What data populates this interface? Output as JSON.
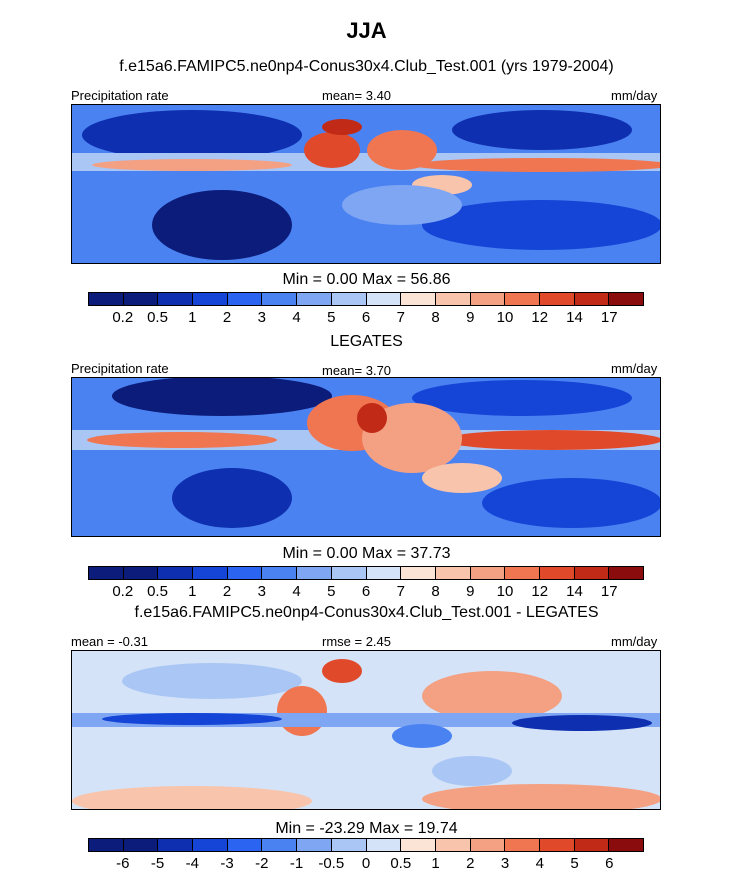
{
  "title": "JJA",
  "panels": [
    {
      "id": "model",
      "header": "f.e15a6.FAMIPC5.ne0np4-Conus30x4.Club_Test.001 (yrs 1979-2004)",
      "left_label": "Precipitation rate",
      "center_label": "mean=   3.40",
      "right_label": "mm/day",
      "minmax": "Min =   0.00 Max =  56.86",
      "ticks": [
        "0.2",
        "0.5",
        "1",
        "2",
        "3",
        "4",
        "5",
        "6",
        "7",
        "8",
        "9",
        "10",
        "12",
        "14",
        "17"
      ],
      "mean_value": 3.4,
      "min_value": 0.0,
      "max_value": 56.86
    },
    {
      "id": "obs",
      "header": "LEGATES",
      "left_label": "Precipitation rate",
      "center_label": "mean=   3.70",
      "right_label": "mm/day",
      "minmax": "Min =   0.00 Max =  37.73",
      "ticks": [
        "0.2",
        "0.5",
        "1",
        "2",
        "3",
        "4",
        "5",
        "6",
        "7",
        "8",
        "9",
        "10",
        "12",
        "14",
        "17"
      ],
      "mean_value": 3.7,
      "min_value": 0.0,
      "max_value": 37.73
    },
    {
      "id": "diff",
      "header": "f.e15a6.FAMIPC5.ne0np4-Conus30x4.Club_Test.001 - LEGATES",
      "left_label": "mean =  -0.31",
      "center_label": "rmse =   2.45",
      "right_label": "mm/day",
      "minmax": "Min = -23.29 Max =  19.74",
      "ticks": [
        "-6",
        "-5",
        "-4",
        "-3",
        "-2",
        "-1",
        "-0.5",
        "0",
        "0.5",
        "1",
        "2",
        "3",
        "4",
        "5",
        "6"
      ],
      "mean_value": -0.31,
      "rmse_value": 2.45,
      "min_value": -23.29,
      "max_value": 19.74
    }
  ],
  "colors": {
    "palette": [
      "#0b1c7a",
      "#0d2fb0",
      "#1545d6",
      "#2a64f0",
      "#4b82f2",
      "#7ea6f3",
      "#a9c6f5",
      "#d4e3f7",
      "#fbe4d6",
      "#f8c4ab",
      "#f4a083",
      "#ef7650",
      "#e04a2a",
      "#c02a16",
      "#8a0c0c"
    ]
  }
}
